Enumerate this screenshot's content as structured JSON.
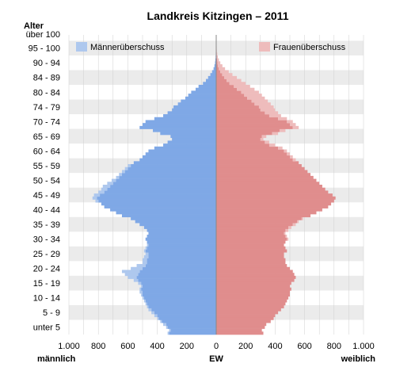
{
  "chart_data": {
    "type": "bar",
    "orientation": "horizontal",
    "title": "Landkreis Kitzingen – 2011",
    "y_axis_title": "Alter",
    "xlabel": "EW",
    "left_label": "männlich",
    "right_label": "weiblich",
    "x_ticks": [
      "1.000",
      "800",
      "600",
      "400",
      "200",
      "0",
      "200",
      "400",
      "600",
      "800",
      "1.000"
    ],
    "xlim": [
      -1000,
      1000
    ],
    "age_labels": [
      "unter 5",
      "5 - 9",
      "10 - 14",
      "15 - 19",
      "20 - 24",
      "25 - 29",
      "30 - 34",
      "35 - 39",
      "40 - 44",
      "45 - 49",
      "50 - 54",
      "55 - 59",
      "60 - 64",
      "65 - 69",
      "70 - 74",
      "74 - 79",
      "80 - 84",
      "84 - 89",
      "90 - 94",
      "95 - 100",
      "über 100"
    ],
    "age_start": 0,
    "age_end": 102,
    "legend": [
      "Männerüberschuss",
      "Frauenüberschuss"
    ],
    "legend_position": "top",
    "grid": "alternating-bands",
    "colors": {
      "male": "#7fa8e6",
      "female": "#e08d8d",
      "male_surplus": "#aec8ee",
      "female_surplus": "#eebcbc",
      "band": "#ebebeb",
      "grid": "#cfcfcf"
    },
    "series": [
      {
        "name": "männlich",
        "values": [
          330,
          320,
          340,
          360,
          380,
          400,
          420,
          440,
          460,
          470,
          480,
          490,
          500,
          510,
          520,
          520,
          510,
          530,
          560,
          600,
          620,
          640,
          580,
          540,
          500,
          500,
          490,
          480,
          490,
          480,
          470,
          470,
          480,
          470,
          460,
          470,
          490,
          520,
          550,
          580,
          640,
          680,
          720,
          760,
          780,
          820,
          840,
          830,
          800,
          780,
          770,
          740,
          710,
          680,
          660,
          640,
          620,
          600,
          560,
          520,
          500,
          480,
          460,
          420,
          360,
          330,
          300,
          310,
          380,
          430,
          520,
          500,
          480,
          420,
          360,
          330,
          300,
          290,
          260,
          240,
          210,
          190,
          170,
          140,
          120,
          90,
          70,
          55,
          40,
          28,
          18,
          12,
          8,
          6,
          4,
          3,
          2,
          1,
          1,
          0,
          0,
          0
        ]
      },
      {
        "name": "weiblich",
        "values": [
          320,
          310,
          330,
          340,
          370,
          390,
          400,
          420,
          440,
          460,
          470,
          480,
          490,
          500,
          500,
          510,
          500,
          510,
          530,
          540,
          530,
          520,
          500,
          480,
          470,
          470,
          460,
          460,
          480,
          470,
          460,
          470,
          490,
          480,
          470,
          490,
          510,
          540,
          560,
          590,
          640,
          680,
          720,
          760,
          780,
          800,
          810,
          790,
          760,
          740,
          720,
          700,
          680,
          660,
          640,
          620,
          600,
          580,
          560,
          540,
          520,
          500,
          480,
          450,
          400,
          360,
          320,
          340,
          420,
          470,
          560,
          540,
          520,
          480,
          440,
          420,
          400,
          390,
          370,
          350,
          330,
          310,
          290,
          260,
          230,
          200,
          170,
          140,
          110,
          85,
          60,
          42,
          28,
          18,
          11,
          7,
          4,
          3,
          2,
          1,
          1,
          0
        ]
      }
    ]
  }
}
